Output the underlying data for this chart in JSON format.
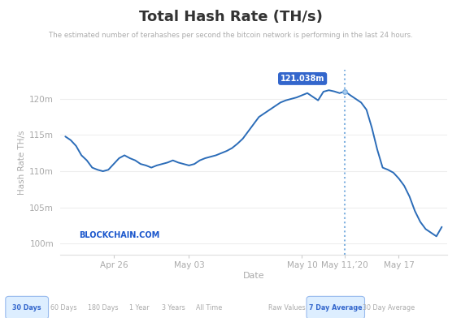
{
  "title": "Total Hash Rate (TH/s)",
  "subtitle": "The estimated number of terahashes per second the bitcoin network is performing in the last 24 hours.",
  "xlabel": "Date",
  "ylabel": "Hash Rate TH/s",
  "line_color": "#2B6CB8",
  "background_color": "#ffffff",
  "annotation_label": "121.038m",
  "ytick_labels": [
    "100m",
    "105m",
    "110m",
    "115m",
    "120m"
  ],
  "ytick_values": [
    100,
    105,
    110,
    115,
    120
  ],
  "xtick_labels": [
    "Apr 26",
    "May 03",
    "May 10",
    "May 11,’20",
    "May 17"
  ],
  "xtick_positions": [
    9,
    23,
    44,
    52,
    62
  ],
  "tab_left": [
    "30 Days",
    "60 Days",
    "180 Days",
    "1 Year",
    "3 Years",
    "All Time"
  ],
  "tab_right": [
    "Raw Values",
    "7 Day Average",
    "30 Day Average"
  ],
  "tab_active_left": "30 Days",
  "tab_active_right": "7 Day Average",
  "watermark": "BLOCKCHAIN.COM",
  "x_values": [
    0,
    1,
    2,
    3,
    4,
    5,
    6,
    7,
    8,
    9,
    10,
    11,
    12,
    13,
    14,
    15,
    16,
    17,
    18,
    19,
    20,
    21,
    22,
    23,
    24,
    25,
    26,
    27,
    28,
    29,
    30,
    31,
    32,
    33,
    34,
    35,
    36,
    37,
    38,
    39,
    40,
    41,
    42,
    43,
    44,
    45,
    46,
    47,
    48,
    49,
    50,
    51,
    52,
    53,
    54,
    55,
    56,
    57,
    58,
    59,
    60,
    61,
    62,
    63,
    64,
    65,
    66,
    67,
    68,
    69,
    70
  ],
  "y_values": [
    114.8,
    114.3,
    113.5,
    112.2,
    111.5,
    110.5,
    110.2,
    110.0,
    110.2,
    111.0,
    111.8,
    112.2,
    111.8,
    111.5,
    111.0,
    110.8,
    110.5,
    110.8,
    111.0,
    111.2,
    111.5,
    111.2,
    111.0,
    110.8,
    111.0,
    111.5,
    111.8,
    112.0,
    112.2,
    112.5,
    112.8,
    113.2,
    113.8,
    114.5,
    115.5,
    116.5,
    117.5,
    118.0,
    118.5,
    119.0,
    119.5,
    119.8,
    120.0,
    120.2,
    120.5,
    120.8,
    120.3,
    119.8,
    121.0,
    121.2,
    121.038,
    120.8,
    121.038,
    120.5,
    120.0,
    119.5,
    118.5,
    116.0,
    113.0,
    110.5,
    110.2,
    109.8,
    109.0,
    108.0,
    106.5,
    104.5,
    103.0,
    102.0,
    101.5,
    101.0,
    102.3
  ],
  "dashed_x_idx": 52,
  "dot_x_idx": 52,
  "dot_y": 121.038,
  "ylim": [
    98.5,
    124
  ],
  "xlim": [
    -1,
    71
  ]
}
